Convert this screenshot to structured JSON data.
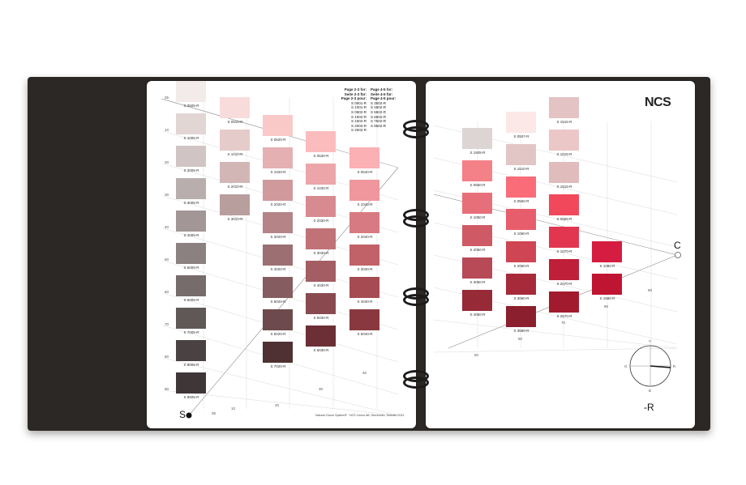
{
  "left_page": {
    "swatches": [
      {
        "code": "S 0505-R",
        "col": 0,
        "row": 0,
        "color": "#f3ebea"
      },
      {
        "code": "S 1005-R",
        "col": 0,
        "row": 1,
        "color": "#e2d6d5"
      },
      {
        "code": "S 2005-R",
        "col": 0,
        "row": 2,
        "color": "#d1c4c4"
      },
      {
        "code": "S 3005-R",
        "col": 0,
        "row": 3,
        "color": "#b9aeae"
      },
      {
        "code": "S 4005-R",
        "col": 0,
        "row": 4,
        "color": "#a29696"
      },
      {
        "code": "S 5005-R",
        "col": 0,
        "row": 5,
        "color": "#8c8181"
      },
      {
        "code": "S 6005-R",
        "col": 0,
        "row": 6,
        "color": "#776c6c"
      },
      {
        "code": "S 7005-R",
        "col": 0,
        "row": 7,
        "color": "#605757"
      },
      {
        "code": "S 8005-R",
        "col": 0,
        "row": 8,
        "color": "#4a4242"
      },
      {
        "code": "S 8505-R",
        "col": 0,
        "row": 9,
        "color": "#3e3637"
      },
      {
        "code": "S 0510-R",
        "col": 1,
        "row": 0,
        "color": "#f7dcdb"
      },
      {
        "code": "S 1010-R",
        "col": 1,
        "row": 1,
        "color": "#e6cbcb"
      },
      {
        "code": "S 2010-R",
        "col": 1,
        "row": 2,
        "color": "#d2b6b6"
      },
      {
        "code": "S 3010-R",
        "col": 1,
        "row": 3,
        "color": "#b99e9e"
      },
      {
        "code": "S 0520-R",
        "col": 2,
        "row": 0,
        "color": "#f9c9c8"
      },
      {
        "code": "S 1020-R",
        "col": 2,
        "row": 1,
        "color": "#e5b0b1"
      },
      {
        "code": "S 2020-R",
        "col": 2,
        "row": 2,
        "color": "#d09a9c"
      },
      {
        "code": "S 3020-R",
        "col": 2,
        "row": 3,
        "color": "#b58487"
      },
      {
        "code": "S 4020-R",
        "col": 2,
        "row": 4,
        "color": "#9c6f72"
      },
      {
        "code": "S 5020-R",
        "col": 2,
        "row": 5,
        "color": "#855c5f"
      },
      {
        "code": "S 6020-R",
        "col": 2,
        "row": 6,
        "color": "#6d4a4d"
      },
      {
        "code": "S 7020-R",
        "col": 2,
        "row": 7,
        "color": "#4f3033"
      },
      {
        "code": "S 0530-R",
        "col": 3,
        "row": 0,
        "color": "#fbbcbe"
      },
      {
        "code": "S 1030-R",
        "col": 3,
        "row": 1,
        "color": "#eca5a8"
      },
      {
        "code": "S 2030-R",
        "col": 3,
        "row": 2,
        "color": "#d78a8f"
      },
      {
        "code": "S 3030-R",
        "col": 3,
        "row": 3,
        "color": "#c07277"
      },
      {
        "code": "S 4030-R",
        "col": 3,
        "row": 4,
        "color": "#a45d62"
      },
      {
        "code": "S 5030-R",
        "col": 3,
        "row": 5,
        "color": "#884a4f"
      },
      {
        "code": "S 6030-R",
        "col": 3,
        "row": 6,
        "color": "#6b2f35"
      },
      {
        "code": "S 0540-R",
        "col": 4,
        "row": 0,
        "color": "#fbb0b4"
      },
      {
        "code": "S 1040-R",
        "col": 4,
        "row": 1,
        "color": "#ef979c"
      },
      {
        "code": "S 2040-R",
        "col": 4,
        "row": 2,
        "color": "#d87a81"
      },
      {
        "code": "S 3040-R",
        "col": 4,
        "row": 3,
        "color": "#c16168"
      },
      {
        "code": "S 4040-R",
        "col": 4,
        "row": 4,
        "color": "#a64b52"
      },
      {
        "code": "S 5040-R",
        "col": 4,
        "row": 5,
        "color": "#8a3840"
      }
    ],
    "blackness_ticks": [
      "05",
      "10",
      "20",
      "30",
      "40",
      "50",
      "60",
      "70",
      "80",
      "90"
    ],
    "chroma_ticks": [
      "05",
      "10",
      "20",
      "30",
      "40"
    ],
    "corner_label": "S",
    "legend_col1": [
      "Page 2-3 for:",
      "Seite 2-3 für:",
      "Page 2-3 pour:",
      "S 0601-R",
      "S 1001-R",
      "S 0502-R",
      "S 1002-R",
      "S 1502-R",
      "S 2002-R",
      "S 2502-R"
    ],
    "legend_col2": [
      "Page 4-5 for:",
      "Seite 4-5 für:",
      "Page 4-5 pour:",
      "S 3502-R",
      "S 4502-R",
      "S 5502-R",
      "S 6502-R",
      "S 7502-R",
      "S 8502-R"
    ],
    "footer": "Natural Colour System®   ·   NCS Colour AB, Stockholm, Sweden 2021"
  },
  "right_page": {
    "logo": "NCS",
    "swatches": [
      {
        "code": "S 1505-R",
        "col": 0,
        "row": 0,
        "color": "#dcd5d3"
      },
      {
        "code": "S 0550-R",
        "col": 0,
        "row": 1,
        "color": "#f48088"
      },
      {
        "code": "S 1050-R",
        "col": 0,
        "row": 2,
        "color": "#e76f79"
      },
      {
        "code": "S 2050-R",
        "col": 0,
        "row": 3,
        "color": "#cf5a65"
      },
      {
        "code": "S 3050-R",
        "col": 0,
        "row": 4,
        "color": "#b84957"
      },
      {
        "code": "S 4050-R",
        "col": 0,
        "row": 5,
        "color": "#962a36"
      },
      {
        "code": "S 0507-R",
        "col": 1,
        "row": 0,
        "color": "#fbe8e7"
      },
      {
        "code": "S 1510-R",
        "col": 1,
        "row": 1,
        "color": "#e2c6c5"
      },
      {
        "code": "S 0560-R",
        "col": 1,
        "row": 2,
        "color": "#f96c78"
      },
      {
        "code": "S 1060-R",
        "col": 1,
        "row": 3,
        "color": "#e85d6b"
      },
      {
        "code": "S 2060-R",
        "col": 1,
        "row": 4,
        "color": "#cf4553"
      },
      {
        "code": "S 3060-R",
        "col": 1,
        "row": 5,
        "color": "#a72a3b"
      },
      {
        "code": "S 3560-R",
        "col": 1,
        "row": 6,
        "color": "#8c1f2d"
      },
      {
        "code": "S 1515-R",
        "col": 2,
        "row": 0,
        "color": "#e3c3c3"
      },
      {
        "code": "S 1015-R",
        "col": 2,
        "row": 1,
        "color": "#ecc7c8"
      },
      {
        "code": "S 1515-R",
        "col": 2,
        "row": 2,
        "color": "#e0bcbd"
      },
      {
        "code": "S 0565-R",
        "col": 2,
        "row": 3,
        "color": "#f1495b"
      },
      {
        "code": "S 1070-R",
        "col": 2,
        "row": 4,
        "color": "#e23650"
      },
      {
        "code": "S 2070-R",
        "col": 2,
        "row": 5,
        "color": "#bf1f38"
      },
      {
        "code": "S 2570-R",
        "col": 2,
        "row": 6,
        "color": "#a11a2e"
      },
      {
        "code": "S 1080-R",
        "col": 3,
        "row": 4,
        "color": "#d41d40"
      },
      {
        "code": "S 1580-R",
        "col": 3,
        "row": 5,
        "color": "#c01532"
      }
    ],
    "chroma_ticks": [
      "50",
      "60",
      "70",
      "80",
      "90"
    ],
    "corner_label": "C",
    "hue_label": "-R",
    "compass_labels": {
      "top": "Y",
      "right": "R",
      "bottom": "B",
      "left": "G"
    }
  }
}
